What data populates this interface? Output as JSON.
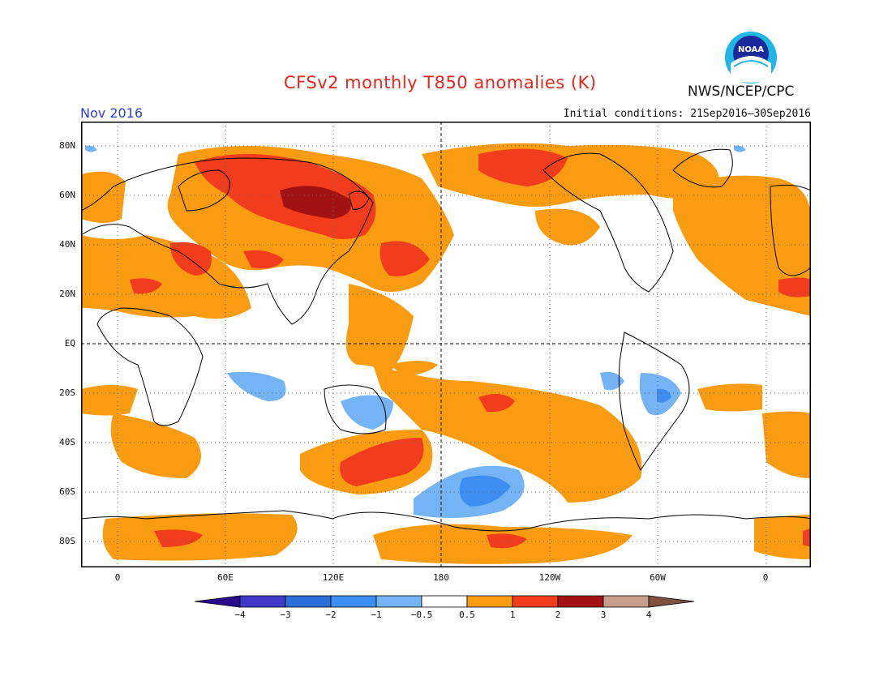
{
  "title": "CFSv2 monthly T850 anomalies (K)",
  "period": "Nov 2016",
  "initial_conditions": "Initial conditions: 21Sep2016–30Sep2016",
  "agency": "NWS/NCEP/CPC",
  "logo_text": "NOAA",
  "lat_labels": [
    "80N",
    "60N",
    "40N",
    "20N",
    "EQ",
    "20S",
    "40S",
    "60S",
    "80S"
  ],
  "lon_labels": [
    "0",
    "60E",
    "120E",
    "180",
    "120W",
    "60W",
    "0"
  ],
  "colorbar": {
    "ticks": [
      "−4",
      "−3",
      "−2",
      "−1",
      "−0.5",
      "0.5",
      "1",
      "2",
      "3",
      "4"
    ],
    "colors": [
      "#2a0a8c",
      "#4038c8",
      "#2c6fd8",
      "#3d8ef0",
      "#74b4f4",
      "#ffffff",
      "#fa9c12",
      "#f23c1e",
      "#a31212",
      "#c79e8c",
      "#7d5040"
    ]
  },
  "map": {
    "land_outline_color": "#000000",
    "gridline_style": "dotted",
    "anomaly_regions": [
      {
        "region": "Siberia / Central Asia",
        "level": "3"
      },
      {
        "region": "Eurasia 40N-75N",
        "level": "1-2"
      },
      {
        "region": "Greenland / Arctic",
        "level": "1-2"
      },
      {
        "region": "South Pacific 60S",
        "level": "-1 to -2"
      },
      {
        "region": "Indian Ocean 20S",
        "level": "-0.5 to -1"
      },
      {
        "region": "Australia interior",
        "level": "-0.5 to -1"
      }
    ]
  }
}
